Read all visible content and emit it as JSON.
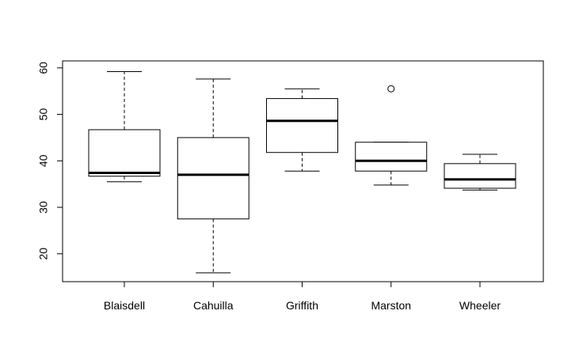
{
  "chart_data": {
    "type": "boxplot",
    "categories": [
      "Blaisdell",
      "Cahuilla",
      "Griffith",
      "Marston",
      "Wheeler"
    ],
    "boxes": [
      {
        "category": "Blaisdell",
        "whisker_low": 35.5,
        "q1": 36.7,
        "median": 37.4,
        "q3": 46.7,
        "whisker_high": 59.2,
        "outliers": []
      },
      {
        "category": "Cahuilla",
        "whisker_low": 15.9,
        "q1": 27.5,
        "median": 37.0,
        "q3": 45.0,
        "whisker_high": 57.6,
        "outliers": []
      },
      {
        "category": "Griffith",
        "whisker_low": 37.8,
        "q1": 41.8,
        "median": 48.6,
        "q3": 53.4,
        "whisker_high": 55.5,
        "outliers": []
      },
      {
        "category": "Marston",
        "whisker_low": 34.8,
        "q1": 37.8,
        "median": 40.0,
        "q3": 44.0,
        "whisker_high": 44.0,
        "outliers": [
          55.5
        ]
      },
      {
        "category": "Wheeler",
        "whisker_low": 33.7,
        "q1": 34.1,
        "median": 36.0,
        "q3": 39.4,
        "whisker_high": 41.4,
        "outliers": []
      }
    ],
    "yticks": [
      "20",
      "30",
      "40",
      "50",
      "60"
    ],
    "ylim": [
      14,
      61.5
    ],
    "title": "",
    "xlabel": "",
    "ylabel": "",
    "grid": false,
    "colors": {
      "box_fill": "#ffffff",
      "stroke": "#000000"
    }
  }
}
